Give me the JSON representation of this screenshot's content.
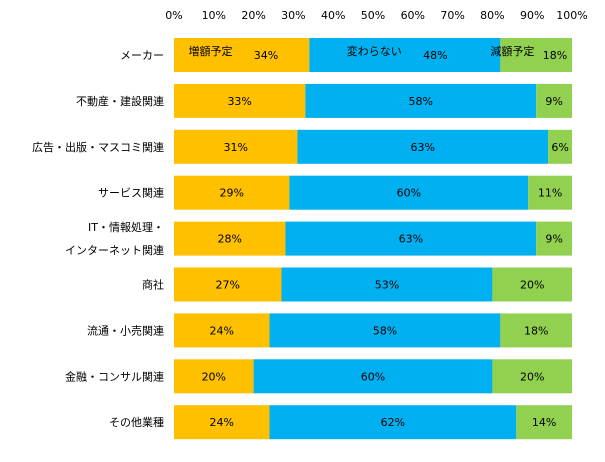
{
  "chart_data": {
    "type": "bar",
    "orientation": "horizontal",
    "stacked": true,
    "title": "",
    "xlabel": "",
    "ylabel": "",
    "xlim": [
      0,
      100
    ],
    "x_ticks": [
      "0%",
      "10%",
      "20%",
      "30%",
      "40%",
      "50%",
      "60%",
      "70%",
      "80%",
      "90%",
      "100%"
    ],
    "x_tick_position": "top",
    "grid": false,
    "categories": [
      [
        "メーカー"
      ],
      [
        "不動産・建設関連"
      ],
      [
        "広告・出版・マスコミ関連"
      ],
      [
        "サービス関連"
      ],
      [
        "IT・情報処理・",
        "インターネット関連"
      ],
      [
        "商社"
      ],
      [
        "流通・小売関連"
      ],
      [
        "金融・コンサル関連"
      ],
      [
        "その他業種"
      ]
    ],
    "series": [
      {
        "name": "増額予定",
        "color": "#FFC000",
        "values": [
          34,
          33,
          31,
          29,
          28,
          27,
          24,
          20,
          24
        ]
      },
      {
        "name": "変わらない",
        "color": "#00B0F0",
        "values": [
          48,
          58,
          63,
          60,
          63,
          53,
          58,
          60,
          62
        ]
      },
      {
        "name": "減額予定",
        "color": "#92D050",
        "values": [
          18,
          9,
          6,
          11,
          9,
          20,
          18,
          20,
          14
        ]
      }
    ],
    "value_suffix": "%",
    "legend": "inside-first-bar"
  }
}
